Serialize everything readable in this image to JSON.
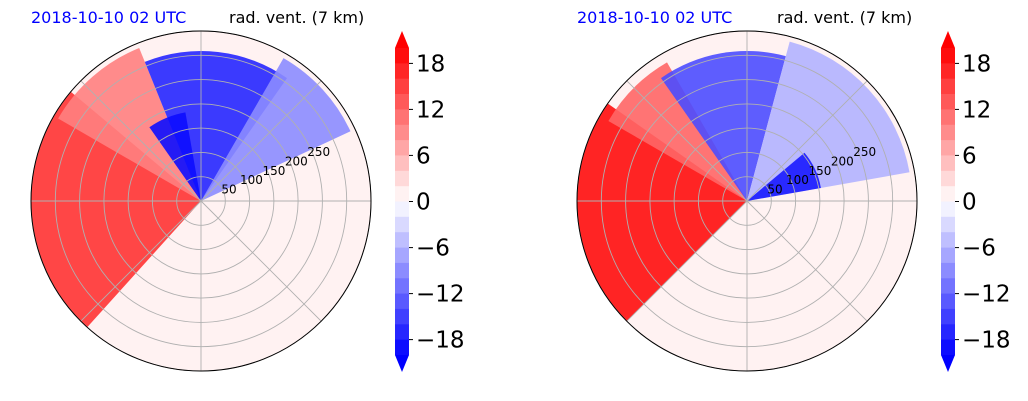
{
  "chart_data": [
    {
      "type": "heatmap",
      "subtype": "polar-contourf",
      "title_left": "2018-10-10 02 UTC",
      "title_right": "rad. vent. (7 km)",
      "radial_ticks": [
        "50",
        "100",
        "150",
        "200",
        "250"
      ],
      "colorbar": {
        "ticks": [
          "18",
          "12",
          "6",
          "0",
          "−6",
          "−12",
          "−18"
        ],
        "tick_values": [
          18,
          12,
          6,
          0,
          -6,
          -12,
          -18
        ],
        "range": [
          -20,
          20
        ],
        "extend": "both",
        "cmap": "bwr"
      },
      "colors": {
        "neg": "#0000ff",
        "zero": "#ffffff",
        "pos": "#ff0000",
        "title_left": "#0000ff"
      }
    },
    {
      "type": "heatmap",
      "subtype": "polar-contourf",
      "title_left": "2018-10-10 02 UTC",
      "title_right": "rad. vent. (7 km)",
      "radial_ticks": [
        "50",
        "100",
        "150",
        "200",
        "250"
      ],
      "colorbar": {
        "ticks": [
          "18",
          "12",
          "6",
          "0",
          "−6",
          "−12",
          "−18"
        ],
        "tick_values": [
          18,
          12,
          6,
          0,
          -6,
          -12,
          -18
        ],
        "range": [
          -20,
          20
        ],
        "extend": "both",
        "cmap": "bwr"
      },
      "colors": {
        "neg": "#0000ff",
        "zero": "#ffffff",
        "pos": "#ff0000",
        "title_left": "#0000ff"
      }
    }
  ]
}
